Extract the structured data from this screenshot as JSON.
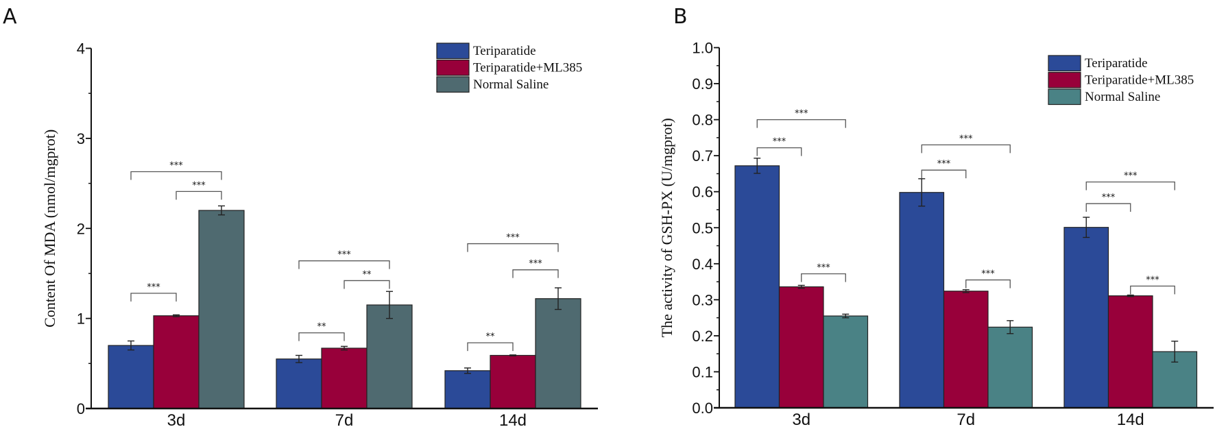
{
  "colors": {
    "teriparatide": "#2b4a98",
    "teriparatide_ml385": "#98003a",
    "saline_a": "#4f6a70",
    "saline_b": "#4a8285",
    "axis": "#111111"
  },
  "chart_data": [
    {
      "panel": "A",
      "type": "bar",
      "title": "",
      "xlabel": "",
      "ylabel": "Content Of MDA (nmol/mgprot)",
      "ylim": [
        0,
        4
      ],
      "yticks": [
        "0",
        "1",
        "2",
        "3",
        "4"
      ],
      "ytick_values": [
        0,
        1,
        2,
        3,
        4
      ],
      "minor_tick_step": 0.5,
      "categories": [
        "3d",
        "7d",
        "14d"
      ],
      "legend_position": "top-right",
      "series": [
        {
          "name": "Teriparatide",
          "color_key": "teriparatide",
          "values": [
            0.7,
            0.55,
            0.42
          ],
          "errors": [
            0.05,
            0.04,
            0.03
          ]
        },
        {
          "name": "Teriparatide+ML385",
          "color_key": "teriparatide_ml385",
          "values": [
            1.03,
            0.67,
            0.59
          ],
          "errors": [
            0.01,
            0.02,
            0.005
          ]
        },
        {
          "name": "Normal Saline",
          "color_key": "saline_a",
          "values": [
            2.2,
            1.15,
            1.22
          ],
          "errors": [
            0.05,
            0.15,
            0.12
          ]
        }
      ],
      "significance": [
        {
          "category": "3d",
          "from": 0,
          "to": 2,
          "level": 2.63,
          "label": "***"
        },
        {
          "category": "3d",
          "from": 1,
          "to": 2,
          "level": 2.41,
          "label": "***"
        },
        {
          "category": "3d",
          "from": 0,
          "to": 1,
          "level": 1.28,
          "label": "***"
        },
        {
          "category": "7d",
          "from": 0,
          "to": 2,
          "level": 1.64,
          "label": "***"
        },
        {
          "category": "7d",
          "from": 1,
          "to": 2,
          "level": 1.42,
          "label": "**"
        },
        {
          "category": "7d",
          "from": 0,
          "to": 1,
          "level": 0.84,
          "label": "**"
        },
        {
          "category": "14d",
          "from": 0,
          "to": 2,
          "level": 1.83,
          "label": "***"
        },
        {
          "category": "14d",
          "from": 1,
          "to": 2,
          "level": 1.54,
          "label": "***"
        },
        {
          "category": "14d",
          "from": 0,
          "to": 1,
          "level": 0.73,
          "label": "**"
        }
      ]
    },
    {
      "panel": "B",
      "type": "bar",
      "title": "",
      "xlabel": "",
      "ylabel": "The activity of GSH-PX  (U/mgprot)",
      "ylim": [
        0,
        1.0
      ],
      "yticks": [
        "0.0",
        "0.1",
        "0.2",
        "0.3",
        "0.4",
        "0.5",
        "0.6",
        "0.7",
        "0.8",
        "0.9",
        "1.0"
      ],
      "ytick_values": [
        0,
        0.1,
        0.2,
        0.3,
        0.4,
        0.5,
        0.6,
        0.7,
        0.8,
        0.9,
        1.0
      ],
      "minor_tick_step": 0.05,
      "categories": [
        "3d",
        "7d",
        "14d"
      ],
      "legend_position": "top-right",
      "series": [
        {
          "name": "Teriparatide",
          "color_key": "teriparatide",
          "values": [
            0.672,
            0.598,
            0.501
          ],
          "errors": [
            0.021,
            0.038,
            0.028
          ]
        },
        {
          "name": "Teriparatide+ML385",
          "color_key": "teriparatide_ml385",
          "values": [
            0.336,
            0.324,
            0.311
          ],
          "errors": [
            0.004,
            0.004,
            0.002
          ]
        },
        {
          "name": "Normal Saline",
          "color_key": "saline_b",
          "values": [
            0.255,
            0.224,
            0.156
          ],
          "errors": [
            0.005,
            0.018,
            0.029
          ]
        }
      ],
      "significance": [
        {
          "category": "3d",
          "from": 0,
          "to": 2,
          "level": 0.8,
          "label": "***"
        },
        {
          "category": "3d",
          "from": 0,
          "to": 1,
          "level": 0.722,
          "label": "***"
        },
        {
          "category": "3d",
          "from": 1,
          "to": 2,
          "level": 0.372,
          "label": "***"
        },
        {
          "category": "7d",
          "from": 0,
          "to": 2,
          "level": 0.73,
          "label": "***"
        },
        {
          "category": "7d",
          "from": 0,
          "to": 1,
          "level": 0.66,
          "label": "***"
        },
        {
          "category": "7d",
          "from": 1,
          "to": 2,
          "level": 0.355,
          "label": "***"
        },
        {
          "category": "14d",
          "from": 0,
          "to": 2,
          "level": 0.627,
          "label": "***"
        },
        {
          "category": "14d",
          "from": 0,
          "to": 1,
          "level": 0.567,
          "label": "***"
        },
        {
          "category": "14d",
          "from": 1,
          "to": 2,
          "level": 0.338,
          "label": "***"
        }
      ]
    }
  ]
}
